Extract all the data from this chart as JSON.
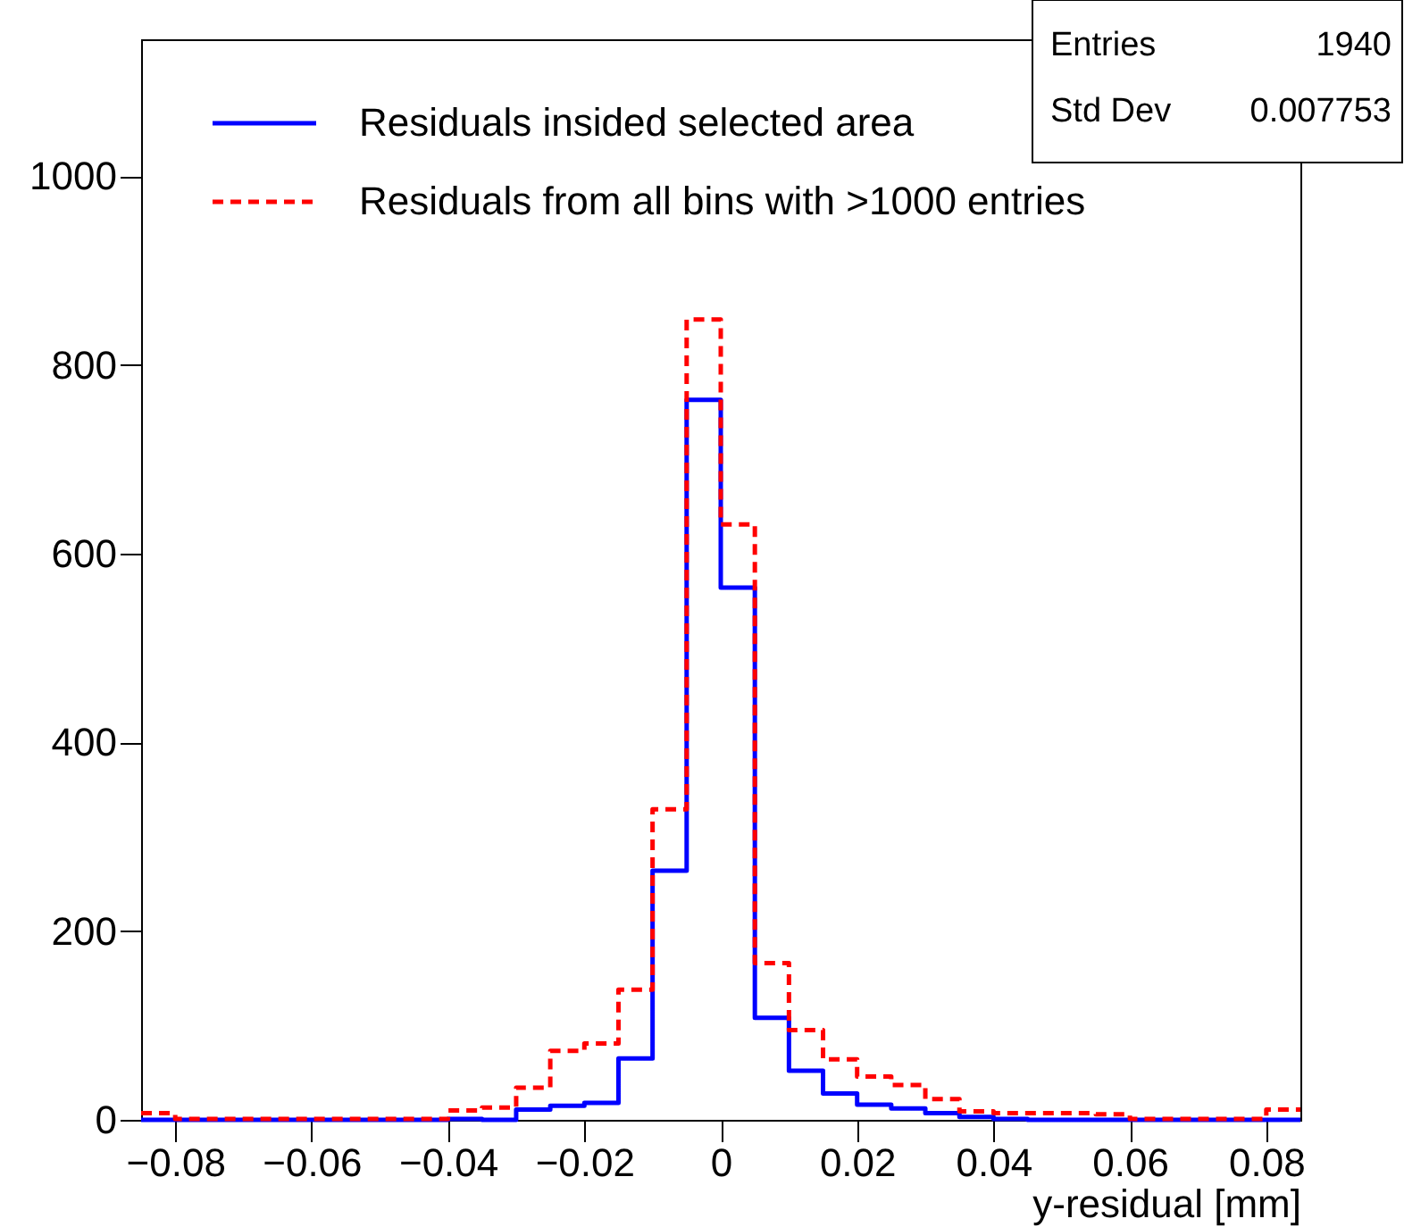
{
  "chart_data": {
    "type": "histogram",
    "xlabel": "y-residual [mm]",
    "bins": [
      -0.085,
      -0.08,
      -0.075,
      -0.07,
      -0.065,
      -0.06,
      -0.055,
      -0.05,
      -0.045,
      -0.04,
      -0.035,
      -0.03,
      -0.025,
      -0.02,
      -0.015,
      -0.01,
      -0.005,
      0,
      0.005,
      0.01,
      0.015,
      0.02,
      0.025,
      0.03,
      0.035,
      0.04,
      0.045,
      0.05,
      0.055,
      0.06,
      0.065,
      0.07,
      0.075,
      0.08,
      0.085
    ],
    "series": [
      {
        "name": "Residuals insided selected area",
        "color": "#0000ff",
        "line_style": "solid",
        "values": [
          0,
          0,
          0,
          0,
          0,
          0,
          0,
          0,
          0,
          1,
          0,
          11,
          15,
          18,
          65,
          264,
          763,
          564,
          108,
          52,
          28,
          16,
          12,
          7,
          3,
          1,
          0,
          0,
          0,
          0,
          0,
          0,
          0,
          0
        ]
      },
      {
        "name": "Residuals from all bins with >1000 entries",
        "color": "#ff0000",
        "line_style": "dashed",
        "values": [
          7,
          1,
          1,
          1,
          1,
          1,
          1,
          1,
          1,
          10,
          13,
          34,
          73,
          81,
          138,
          329,
          848,
          631,
          166,
          95,
          64,
          46,
          37,
          22,
          9,
          7,
          7,
          7,
          6,
          1,
          1,
          1,
          1,
          11
        ]
      }
    ],
    "xlim": [
      -0.085,
      0.085
    ],
    "xticks": [
      -0.08,
      -0.06,
      -0.04,
      -0.02,
      0,
      0.02,
      0.04,
      0.06,
      0.08
    ],
    "ylim": [
      0,
      1145
    ],
    "yticks": [
      0,
      200,
      400,
      600,
      800,
      1000
    ],
    "grid": false,
    "legend": "top left",
    "annotations": [
      "Entries",
      "1940",
      "Std Dev",
      "0.007753"
    ]
  }
}
